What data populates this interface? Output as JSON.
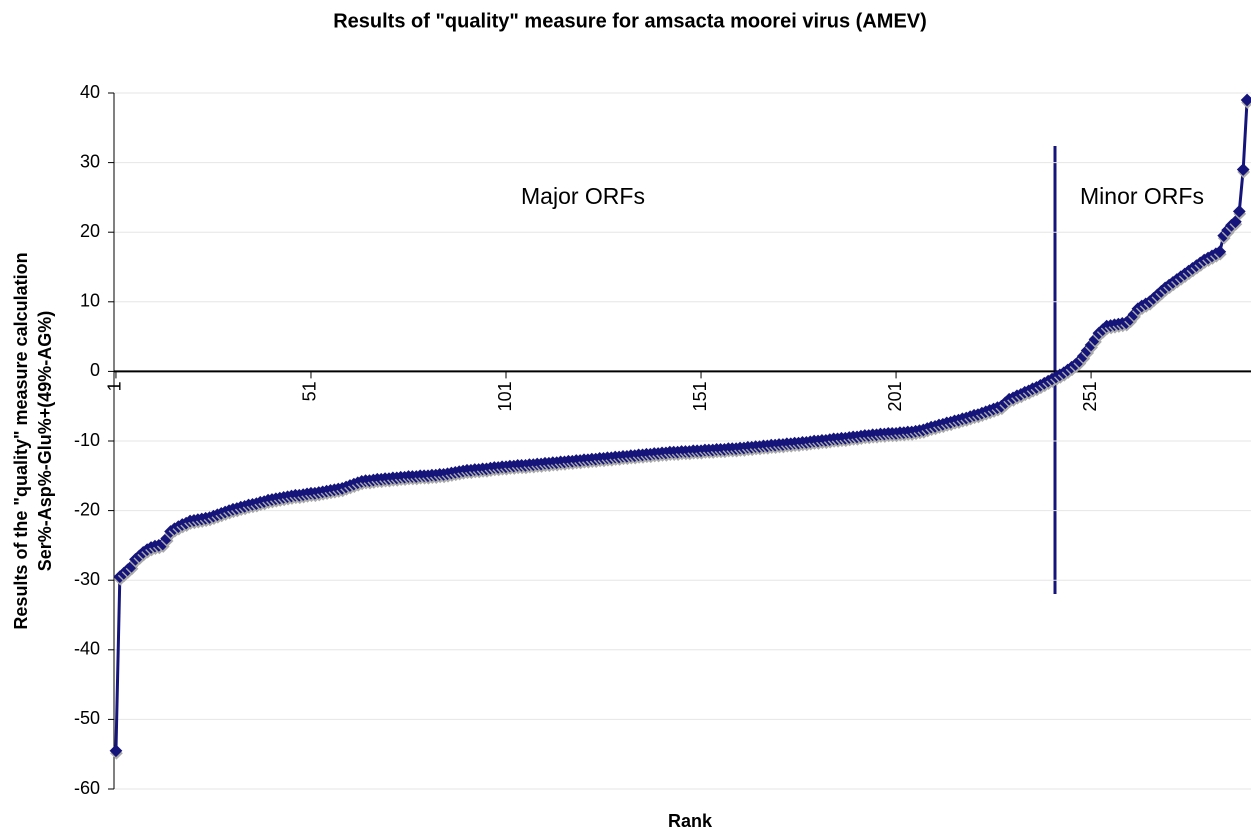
{
  "chart_data": {
    "type": "line",
    "title": "Results of \"quality\" measure for amsacta moorei virus (AMEV)",
    "x_label": "Rank",
    "y_label": [
      "Results of the \"quality\" measure calculation",
      "Ser%-Asp%-Glu%+(49%-AG%)"
    ],
    "annotations": [
      "Major ORFs",
      "Minor ORFs"
    ],
    "color": "#14147a",
    "grid": true,
    "xlim": [
      0.5,
      292
    ],
    "xticks": [
      1,
      51,
      101,
      151,
      201,
      251
    ],
    "ylim": [
      -60,
      40
    ],
    "yticks": [
      -60,
      -50,
      -40,
      -30,
      -20,
      -10,
      0,
      10,
      20,
      30,
      40
    ],
    "x": [
      1,
      2,
      3,
      4,
      5,
      6,
      7,
      8,
      9,
      10,
      11,
      12,
      13,
      14,
      15,
      16,
      17,
      18,
      19,
      20,
      21,
      22,
      23,
      24,
      25,
      26,
      27,
      28,
      29,
      30,
      31,
      32,
      33,
      34,
      35,
      36,
      37,
      38,
      39,
      40,
      41,
      42,
      43,
      44,
      45,
      46,
      47,
      48,
      49,
      50,
      51,
      52,
      53,
      54,
      55,
      56,
      57,
      58,
      59,
      60,
      61,
      62,
      63,
      64,
      65,
      66,
      67,
      68,
      69,
      70,
      71,
      72,
      73,
      74,
      75,
      76,
      77,
      78,
      79,
      80,
      81,
      82,
      83,
      84,
      85,
      86,
      87,
      88,
      89,
      90,
      91,
      92,
      93,
      94,
      95,
      96,
      97,
      98,
      99,
      100,
      101,
      102,
      103,
      104,
      105,
      106,
      107,
      108,
      109,
      110,
      111,
      112,
      113,
      114,
      115,
      116,
      117,
      118,
      119,
      120,
      121,
      122,
      123,
      124,
      125,
      126,
      127,
      128,
      129,
      130,
      131,
      132,
      133,
      134,
      135,
      136,
      137,
      138,
      139,
      140,
      141,
      142,
      143,
      144,
      145,
      146,
      147,
      148,
      149,
      150,
      151,
      152,
      153,
      154,
      155,
      156,
      157,
      158,
      159,
      160,
      161,
      162,
      163,
      164,
      165,
      166,
      167,
      168,
      169,
      170,
      171,
      172,
      173,
      174,
      175,
      176,
      177,
      178,
      179,
      180,
      181,
      182,
      183,
      184,
      185,
      186,
      187,
      188,
      189,
      190,
      191,
      192,
      193,
      194,
      195,
      196,
      197,
      198,
      199,
      200,
      201,
      202,
      203,
      204,
      205,
      206,
      207,
      208,
      209,
      210,
      211,
      212,
      213,
      214,
      215,
      216,
      217,
      218,
      219,
      220,
      221,
      222,
      223,
      224,
      225,
      226,
      227,
      228,
      229,
      230,
      231,
      232,
      233,
      234,
      235,
      236,
      237,
      238,
      239,
      240,
      241,
      242,
      243,
      244,
      245,
      246,
      247,
      248,
      249,
      250,
      251,
      252,
      253,
      254,
      255,
      256,
      257,
      258,
      259,
      260,
      261,
      262,
      263,
      264,
      265,
      266,
      267,
      268,
      269,
      270,
      271,
      272,
      273,
      274,
      275,
      276,
      277,
      278,
      279,
      280,
      281,
      282,
      283,
      284,
      285,
      286,
      287,
      288,
      289,
      290,
      291
    ],
    "values": [
      -54.5,
      -29.5,
      -29,
      -28.5,
      -28,
      -27,
      -26.5,
      -26,
      -25.6,
      -25.3,
      -25.1,
      -25,
      -24.8,
      -24,
      -23,
      -22.6,
      -22.3,
      -22,
      -21.8,
      -21.5,
      -21.4,
      -21.3,
      -21.2,
      -21.1,
      -21,
      -20.8,
      -20.6,
      -20.4,
      -20.2,
      -20,
      -19.8,
      -19.7,
      -19.5,
      -19.4,
      -19.2,
      -19.1,
      -19,
      -18.8,
      -18.7,
      -18.5,
      -18.4,
      -18.3,
      -18.2,
      -18.1,
      -18,
      -17.9,
      -17.8,
      -17.8,
      -17.7,
      -17.6,
      -17.5,
      -17.5,
      -17.4,
      -17.3,
      -17.2,
      -17.1,
      -17,
      -16.9,
      -16.8,
      -16.6,
      -16.4,
      -16.2,
      -16,
      -15.8,
      -15.7,
      -15.7,
      -15.6,
      -15.5,
      -15.5,
      -15.4,
      -15.4,
      -15.3,
      -15.3,
      -15.2,
      -15.2,
      -15.1,
      -15.1,
      -15.1,
      -15,
      -15,
      -15,
      -14.9,
      -14.9,
      -14.8,
      -14.8,
      -14.7,
      -14.6,
      -14.5,
      -14.4,
      -14.3,
      -14.2,
      -14.2,
      -14.1,
      -14.1,
      -14,
      -14,
      -13.9,
      -13.8,
      -13.8,
      -13.7,
      -13.7,
      -13.6,
      -13.6,
      -13.5,
      -13.5,
      -13.5,
      -13.4,
      -13.4,
      -13.3,
      -13.3,
      -13.2,
      -13.2,
      -13.1,
      -13.1,
      -13,
      -13,
      -12.9,
      -12.9,
      -12.8,
      -12.8,
      -12.7,
      -12.7,
      -12.6,
      -12.6,
      -12.5,
      -12.5,
      -12.4,
      -12.4,
      -12.3,
      -12.3,
      -12.2,
      -12.2,
      -12.1,
      -12.1,
      -12,
      -12,
      -11.9,
      -11.9,
      -11.8,
      -11.8,
      -11.7,
      -11.7,
      -11.6,
      -11.6,
      -11.6,
      -11.5,
      -11.5,
      -11.5,
      -11.4,
      -11.4,
      -11.4,
      -11.3,
      -11.3,
      -11.3,
      -11.2,
      -11.2,
      -11.2,
      -11.1,
      -11.1,
      -11.1,
      -11,
      -11,
      -10.9,
      -10.9,
      -10.8,
      -10.8,
      -10.7,
      -10.7,
      -10.6,
      -10.6,
      -10.5,
      -10.5,
      -10.4,
      -10.4,
      -10.3,
      -10.3,
      -10.2,
      -10.2,
      -10.1,
      -10,
      -10,
      -9.9,
      -9.9,
      -9.8,
      -9.7,
      -9.7,
      -9.6,
      -9.6,
      -9.5,
      -9.4,
      -9.4,
      -9.3,
      -9.2,
      -9.2,
      -9.1,
      -9.1,
      -9,
      -9,
      -8.9,
      -8.9,
      -8.9,
      -8.8,
      -8.8,
      -8.7,
      -8.7,
      -8.6,
      -8.5,
      -8.4,
      -8.2,
      -8,
      -7.9,
      -7.7,
      -7.6,
      -7.4,
      -7.3,
      -7.1,
      -7,
      -6.8,
      -6.7,
      -6.5,
      -6.3,
      -6.2,
      -6,
      -5.8,
      -5.6,
      -5.4,
      -5.2,
      -5,
      -4.5,
      -4,
      -3.8,
      -3.5,
      -3.3,
      -3,
      -2.8,
      -2.5,
      -2.3,
      -2,
      -1.7,
      -1.4,
      -1.1,
      -0.8,
      -0.5,
      -0.2,
      0.2,
      0.6,
      1,
      1.5,
      2.2,
      3,
      3.8,
      4.6,
      5.5,
      6,
      6.5,
      6.6,
      6.7,
      6.8,
      6.9,
      7,
      7.5,
      8.2,
      9,
      9.4,
      9.7,
      10,
      10.5,
      11,
      11.5,
      12,
      12.4,
      12.8,
      13.2,
      13.6,
      14,
      14.4,
      14.8,
      15.2,
      15.6,
      16,
      16.3,
      16.6,
      16.9,
      17.2,
      19.5,
      20.3,
      21,
      21.5,
      23,
      29,
      39
    ]
  }
}
